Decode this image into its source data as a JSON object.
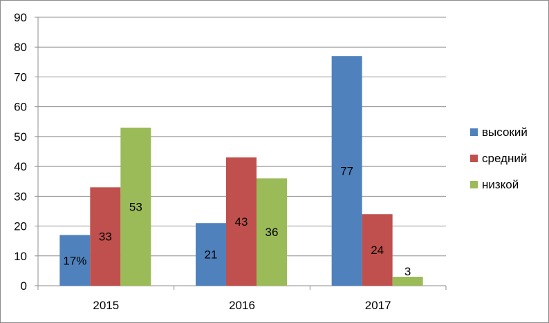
{
  "chart_data": {
    "type": "bar",
    "categories": [
      "2015",
      "2016",
      "2017"
    ],
    "series": [
      {
        "name": "высокий",
        "color": "#4F81BD",
        "values": [
          17,
          21,
          77
        ],
        "labels": [
          "17%",
          "21",
          "77"
        ]
      },
      {
        "name": "средний",
        "color": "#C0504D",
        "values": [
          33,
          43,
          24
        ],
        "labels": [
          "33",
          "43",
          "24"
        ]
      },
      {
        "name": "низкой",
        "color": "#9BBB59",
        "values": [
          53,
          36,
          3
        ],
        "labels": [
          "53",
          "36",
          "3"
        ]
      }
    ],
    "ylim": [
      0,
      90
    ],
    "yticks": [
      0,
      10,
      20,
      30,
      40,
      50,
      60,
      70,
      80,
      90
    ],
    "grid": true,
    "legend": "right"
  }
}
